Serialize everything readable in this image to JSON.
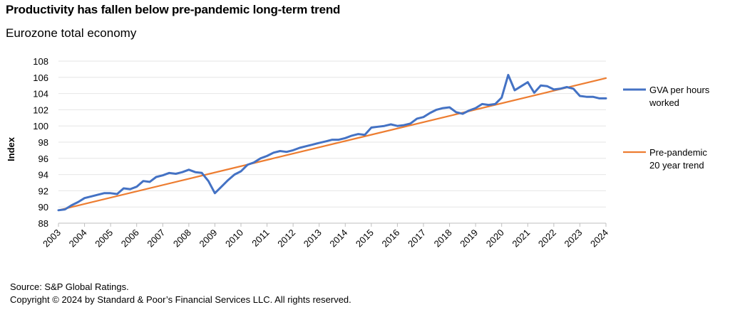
{
  "title": "Productivity has fallen below pre-pandemic long-term trend",
  "subtitle": "Eurozone total economy",
  "source": "Source: S&P Global Ratings.",
  "copyright": "Copyright © 2024 by Standard & Poor’s Financial Services LLC. All rights reserved.",
  "chart_data": {
    "type": "line",
    "ylabel": "Index",
    "xlabel": "",
    "ylim": [
      88,
      108
    ],
    "yticks": [
      "88",
      "90",
      "92",
      "94",
      "96",
      "98",
      "100",
      "102",
      "104",
      "106",
      "108"
    ],
    "xlim": [
      2003,
      2024
    ],
    "xticks": [
      "2003",
      "2004",
      "2005",
      "2006",
      "2007",
      "2008",
      "2009",
      "2010",
      "2011",
      "2012",
      "2013",
      "2014",
      "2015",
      "2016",
      "2017",
      "2018",
      "2019",
      "2020",
      "2021",
      "2022",
      "2023",
      "2024"
    ],
    "grid": "horizontal",
    "legend_position": "right",
    "series": [
      {
        "name": "GVA per hours worked",
        "legend_lines": [
          "GVA per hours",
          "worked"
        ],
        "color": "#4472C4",
        "x": [
          2003.0,
          2003.25,
          2003.5,
          2003.75,
          2004.0,
          2004.25,
          2004.5,
          2004.75,
          2005.0,
          2005.25,
          2005.5,
          2005.75,
          2006.0,
          2006.25,
          2006.5,
          2006.75,
          2007.0,
          2007.25,
          2007.5,
          2007.75,
          2008.0,
          2008.25,
          2008.5,
          2008.75,
          2009.0,
          2009.25,
          2009.5,
          2009.75,
          2010.0,
          2010.25,
          2010.5,
          2010.75,
          2011.0,
          2011.25,
          2011.5,
          2011.75,
          2012.0,
          2012.25,
          2012.5,
          2012.75,
          2013.0,
          2013.25,
          2013.5,
          2013.75,
          2014.0,
          2014.25,
          2014.5,
          2014.75,
          2015.0,
          2015.25,
          2015.5,
          2015.75,
          2016.0,
          2016.25,
          2016.5,
          2016.75,
          2017.0,
          2017.25,
          2017.5,
          2017.75,
          2018.0,
          2018.25,
          2018.5,
          2018.75,
          2019.0,
          2019.25,
          2019.5,
          2019.75,
          2020.0,
          2020.25,
          2020.5,
          2020.75,
          2021.0,
          2021.25,
          2021.5,
          2021.75,
          2022.0,
          2022.25,
          2022.5,
          2022.75,
          2023.0,
          2023.25,
          2023.5,
          2023.75,
          2024.0
        ],
        "values": [
          89.6,
          89.7,
          90.2,
          90.6,
          91.1,
          91.3,
          91.5,
          91.7,
          91.7,
          91.6,
          92.3,
          92.2,
          92.5,
          93.2,
          93.1,
          93.7,
          93.9,
          94.2,
          94.1,
          94.3,
          94.6,
          94.3,
          94.2,
          93.2,
          91.7,
          92.5,
          93.3,
          94.0,
          94.4,
          95.2,
          95.5,
          96.0,
          96.3,
          96.7,
          96.9,
          96.8,
          97.0,
          97.3,
          97.5,
          97.7,
          97.9,
          98.1,
          98.3,
          98.3,
          98.5,
          98.8,
          99.0,
          98.9,
          99.8,
          99.9,
          100.0,
          100.2,
          100.0,
          100.1,
          100.3,
          100.9,
          101.1,
          101.6,
          102.0,
          102.2,
          102.3,
          101.7,
          101.5,
          101.9,
          102.2,
          102.7,
          102.6,
          102.7,
          103.5,
          106.3,
          104.4,
          104.9,
          105.4,
          104.1,
          105.0,
          104.9,
          104.5,
          104.6,
          104.8,
          104.6,
          103.7,
          103.6,
          103.6,
          103.4,
          103.4
        ]
      },
      {
        "name": "Pre-pandemic 20 year trend",
        "legend_lines": [
          "Pre-pandemic",
          "20 year trend"
        ],
        "color": "#ED7D31",
        "x": [
          2003.0,
          2024.0
        ],
        "values": [
          89.6,
          105.9
        ]
      }
    ]
  }
}
